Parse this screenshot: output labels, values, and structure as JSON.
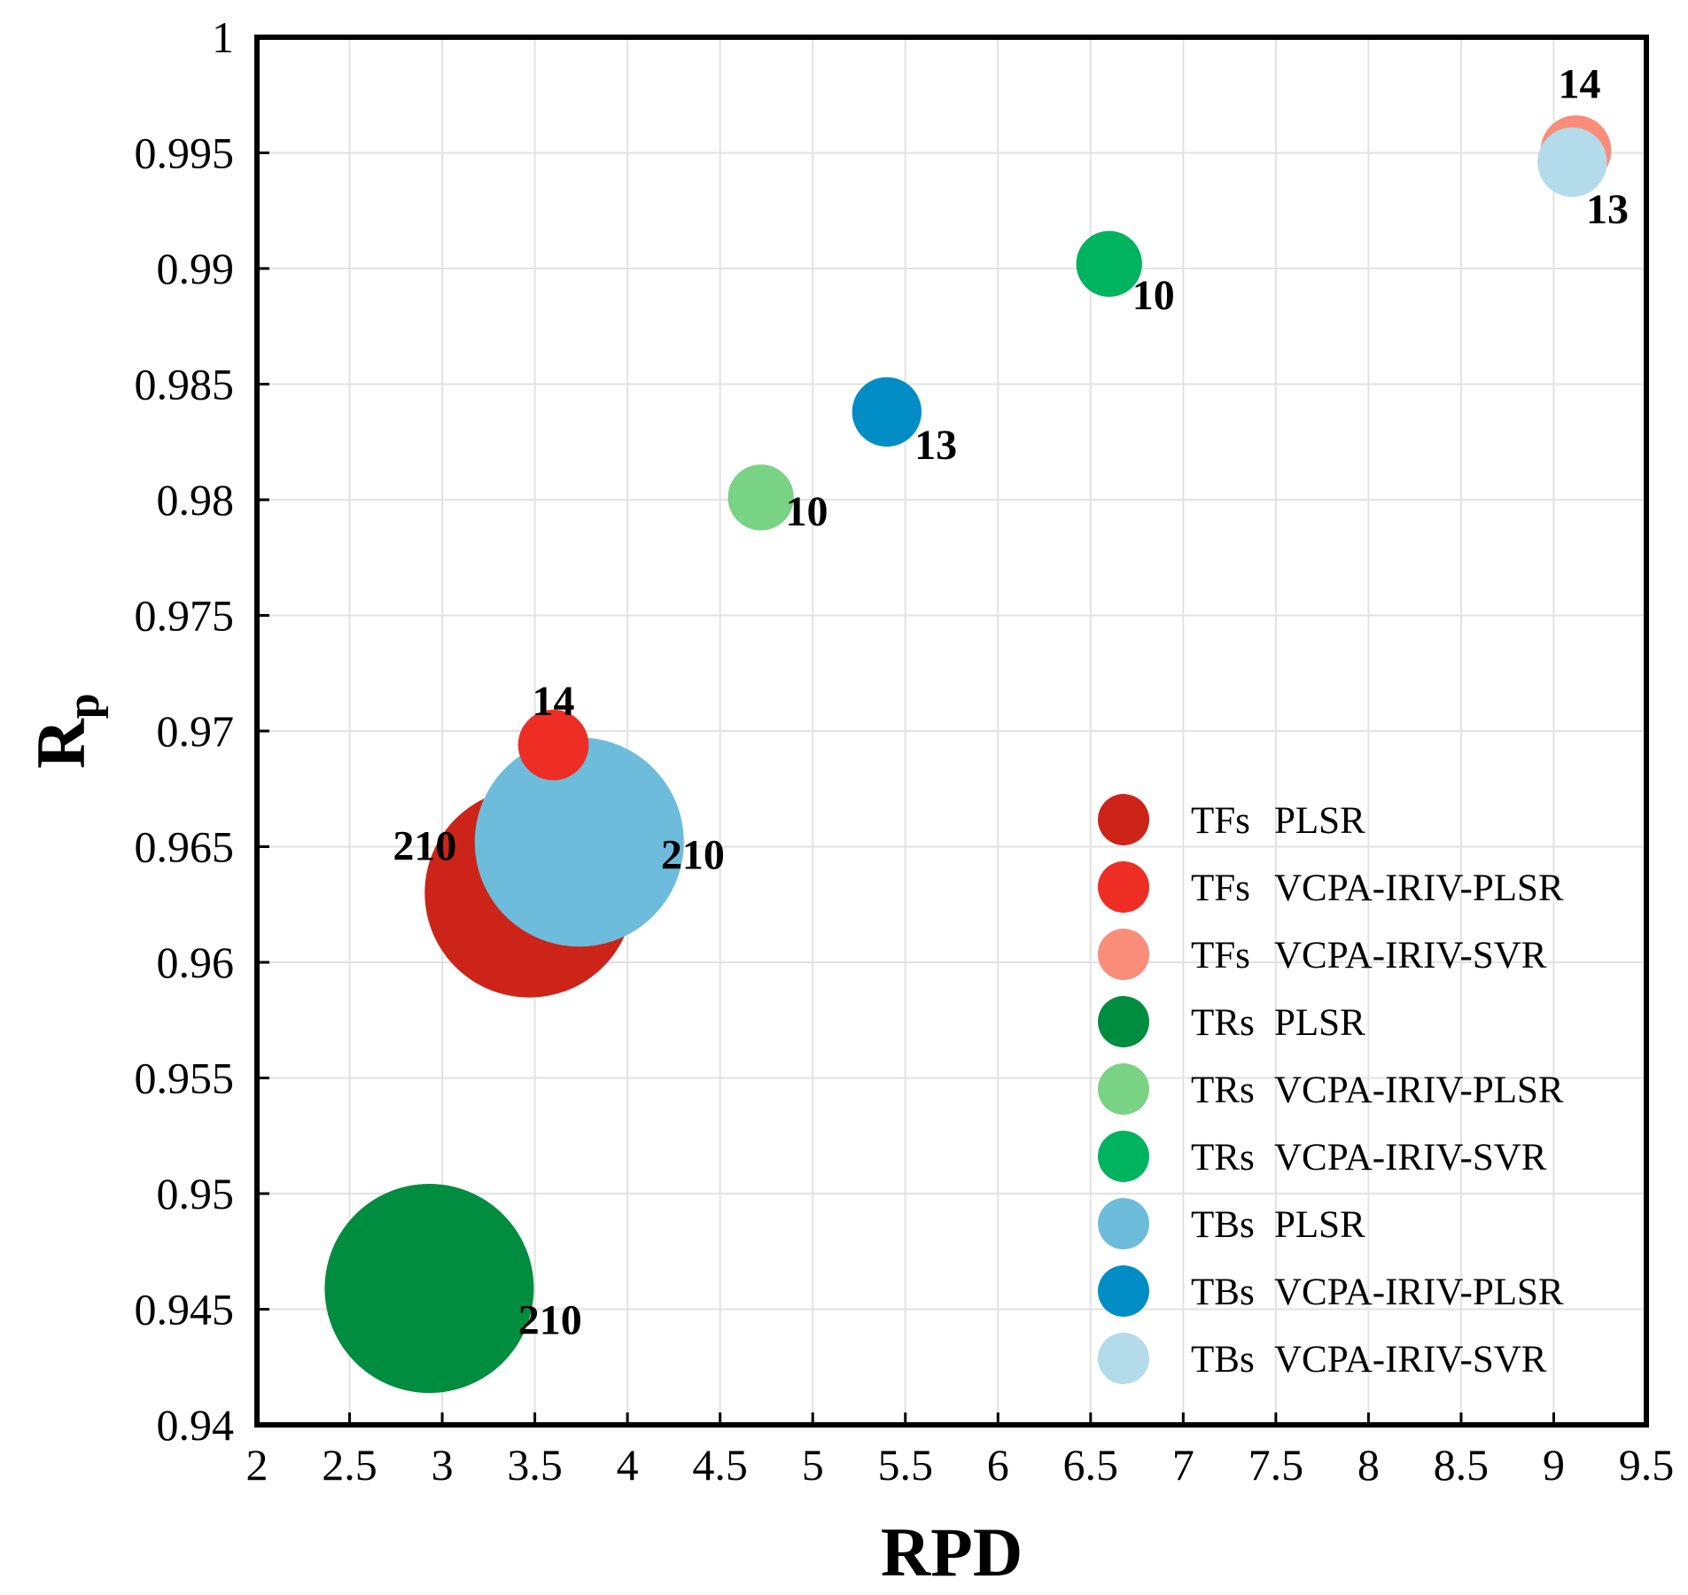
{
  "chart_data": {
    "type": "scatter",
    "subtype": "bubble",
    "xlabel": "RPD",
    "ylabel": "R",
    "ylabel_subscript": "p",
    "xlim": [
      2,
      9.5
    ],
    "ylim": [
      0.94,
      1
    ],
    "xticks": [
      "2",
      "2.5",
      "3",
      "3.5",
      "4",
      "4.5",
      "5",
      "5.5",
      "6",
      "6.5",
      "7",
      "7.5",
      "8",
      "8.5",
      "9",
      "9.5"
    ],
    "yticks": [
      "0.94",
      "0.945",
      "0.95",
      "0.955",
      "0.96",
      "0.965",
      "0.97",
      "0.975",
      "0.98",
      "0.985",
      "0.99",
      "0.995",
      "1"
    ],
    "grid": true,
    "legend_position": "bottom-right",
    "size_meaning": "number of variables",
    "points": [
      {
        "group": "TFs",
        "model": "PLSR",
        "x": 3.47,
        "y": 0.963,
        "size": 210,
        "label": "210",
        "color": "#cc2418"
      },
      {
        "group": "TFs",
        "model": "VCPA-IRIV-PLSR",
        "x": 3.6,
        "y": 0.9694,
        "size": 14,
        "label": "14",
        "color": "#ee2d24"
      },
      {
        "group": "TFs",
        "model": "VCPA-IRIV-SVR",
        "x": 9.12,
        "y": 0.9951,
        "size": 14,
        "label": "14",
        "color": "#fa8c7a"
      },
      {
        "group": "TRs",
        "model": "PLSR",
        "x": 2.93,
        "y": 0.9459,
        "size": 210,
        "label": "210",
        "color": "#008d3f"
      },
      {
        "group": "TRs",
        "model": "VCPA-IRIV-PLSR",
        "x": 4.72,
        "y": 0.9801,
        "size": 10,
        "label": "10",
        "color": "#78d384"
      },
      {
        "group": "TRs",
        "model": "VCPA-IRIV-SVR",
        "x": 6.6,
        "y": 0.9902,
        "size": 10,
        "label": "10",
        "color": "#00b35e"
      },
      {
        "group": "TBs",
        "model": "PLSR",
        "x": 3.74,
        "y": 0.9652,
        "size": 210,
        "label": "210",
        "color": "#6dbcdc"
      },
      {
        "group": "TBs",
        "model": "VCPA-IRIV-PLSR",
        "x": 5.4,
        "y": 0.9838,
        "size": 13,
        "label": "13",
        "color": "#008dc6"
      },
      {
        "group": "TBs",
        "model": "VCPA-IRIV-SVR",
        "x": 9.1,
        "y": 0.9946,
        "size": 13,
        "label": "13",
        "color": "#b3dbea"
      }
    ],
    "legend": [
      {
        "group": "TFs",
        "model": "PLSR",
        "color": "#cc2418"
      },
      {
        "group": "TFs",
        "model": "VCPA-IRIV-PLSR",
        "color": "#ee2d24"
      },
      {
        "group": "TFs",
        "model": "VCPA-IRIV-SVR",
        "color": "#fa8c7a"
      },
      {
        "group": "TRs",
        "model": "PLSR",
        "color": "#008d3f"
      },
      {
        "group": "TRs",
        "model": "VCPA-IRIV-PLSR",
        "color": "#78d384"
      },
      {
        "group": "TRs",
        "model": "VCPA-IRIV-SVR",
        "color": "#00b35e"
      },
      {
        "group": "TBs",
        "model": "PLSR",
        "color": "#6dbcdc"
      },
      {
        "group": "TBs",
        "model": "VCPA-IRIV-PLSR",
        "color": "#008dc6"
      },
      {
        "group": "TBs",
        "model": "VCPA-IRIV-SVR",
        "color": "#b3dbea"
      }
    ]
  }
}
